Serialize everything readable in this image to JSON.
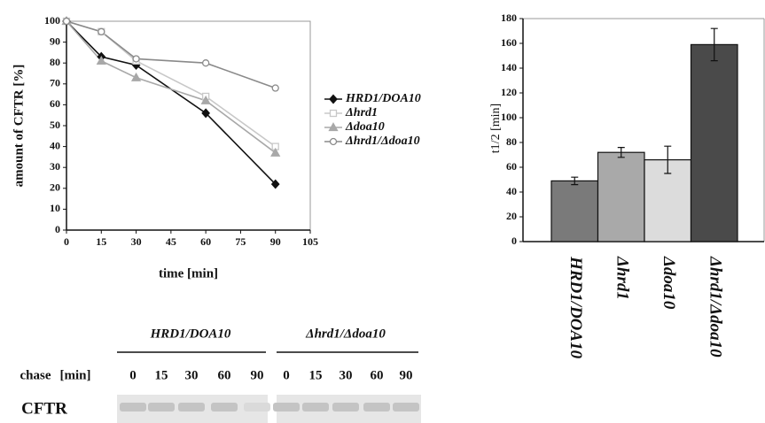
{
  "chart_data": [
    {
      "type": "line",
      "xlabel": "time [min]",
      "ylabel": "amount of CFTR [%]",
      "x": [
        0,
        15,
        30,
        60,
        90
      ],
      "series": [
        {
          "name": "HRD1/DOA10",
          "color": "#111111",
          "marker": "diamond",
          "marker_fill": "#111111",
          "values": [
            100,
            83,
            79,
            56,
            22
          ]
        },
        {
          "name": "Δhrd1",
          "color": "#c8c8c8",
          "marker": "square",
          "marker_fill": "#ffffff",
          "values": [
            100,
            95,
            81,
            64,
            40
          ]
        },
        {
          "name": "Δdoa10",
          "color": "#a8a8a8",
          "marker": "triangle",
          "marker_fill": "#a8a8a8",
          "values": [
            100,
            81,
            73,
            62,
            37
          ]
        },
        {
          "name": "Δhrd1/Δdoa10",
          "color": "#8a8a8a",
          "marker": "circle",
          "marker_fill": "#ffffff",
          "values": [
            100,
            95,
            82,
            80,
            68
          ]
        }
      ],
      "xlim": [
        0,
        105
      ],
      "xticks": [
        0,
        15,
        30,
        45,
        60,
        75,
        90,
        105
      ],
      "ylim": [
        0,
        100
      ],
      "yticks": [
        0,
        10,
        20,
        30,
        40,
        50,
        60,
        70,
        80,
        90,
        100
      ],
      "legend": "right"
    },
    {
      "type": "bar",
      "ylabel": "t1/2 [min]",
      "categories": [
        "HRD1/DOA10",
        "Δhrd1",
        "Δdoa10",
        "Δhrd1/Δdoa10"
      ],
      "values": [
        49,
        72,
        66,
        159
      ],
      "errors": [
        3,
        4,
        11,
        13
      ],
      "colors": [
        "#7a7a7a",
        "#a9a9a9",
        "#dcdcdc",
        "#4a4a4a"
      ],
      "ylim": [
        0,
        180
      ],
      "yticks": [
        0,
        20,
        40,
        60,
        80,
        100,
        120,
        140,
        160,
        180
      ]
    }
  ],
  "blot": {
    "groups": [
      "HRD1/DOA10",
      "Δhrd1/Δdoa10"
    ],
    "chase": "chase",
    "unit": "[min]",
    "lanes": [
      [
        0,
        15,
        30,
        60,
        90
      ],
      [
        0,
        15,
        30,
        60,
        90
      ]
    ],
    "protein": "CFTR"
  }
}
